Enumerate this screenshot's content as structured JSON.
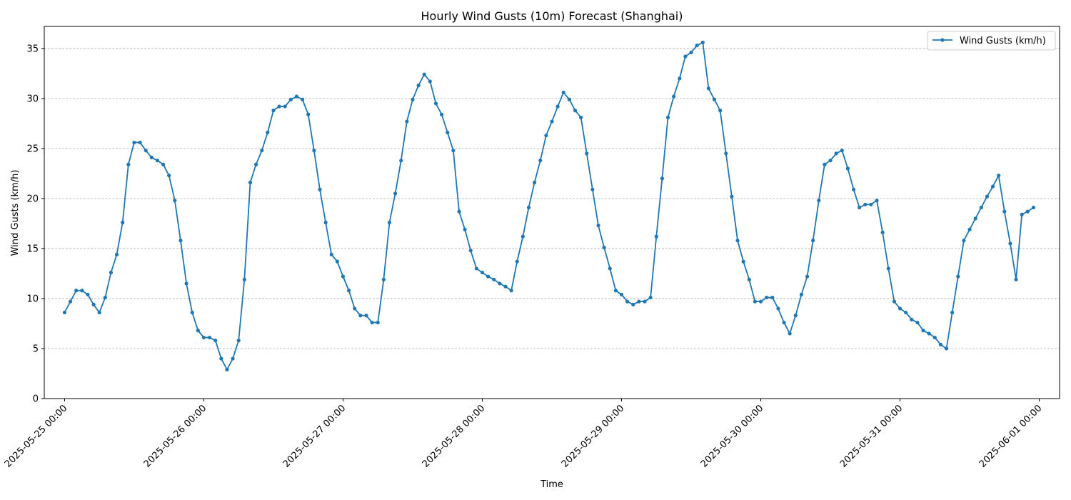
{
  "chart_data": {
    "type": "line",
    "title": "Hourly Wind Gusts (10m) Forecast (Shanghai)",
    "xlabel": "Time",
    "ylabel": "Wind Gusts (km/h)",
    "ylim": [
      0,
      37.2
    ],
    "yticks": [
      0,
      5,
      10,
      15,
      20,
      25,
      30,
      35
    ],
    "grid": "y-dashed",
    "legend_position": "top-right",
    "x_start": "2025-05-25 00:00",
    "x_step_hours": 1,
    "x_ticks": [
      {
        "hour": 0,
        "label": "2025-05-25 00:00"
      },
      {
        "hour": 24,
        "label": "2025-05-26 00:00"
      },
      {
        "hour": 48,
        "label": "2025-05-27 00:00"
      },
      {
        "hour": 72,
        "label": "2025-05-28 00:00"
      },
      {
        "hour": 96,
        "label": "2025-05-29 00:00"
      },
      {
        "hour": 120,
        "label": "2025-05-30 00:00"
      },
      {
        "hour": 144,
        "label": "2025-05-31 00:00"
      },
      {
        "hour": 168,
        "label": "2025-06-01 00:00"
      }
    ],
    "series": [
      {
        "name": "Wind Gusts (km/h)",
        "color": "#1f77b4",
        "marker": "circle",
        "values": [
          8.6,
          9.7,
          10.8,
          10.8,
          10.4,
          9.4,
          8.6,
          10.1,
          12.6,
          14.4,
          17.6,
          23.4,
          25.6,
          25.6,
          24.8,
          24.1,
          23.8,
          23.4,
          22.3,
          19.8,
          15.8,
          11.5,
          8.6,
          6.8,
          6.1,
          6.1,
          5.8,
          4.0,
          2.9,
          4.0,
          5.8,
          11.9,
          21.6,
          23.4,
          24.8,
          26.6,
          28.8,
          29.2,
          29.2,
          29.9,
          30.2,
          29.9,
          28.4,
          24.8,
          20.9,
          17.6,
          14.4,
          13.7,
          12.2,
          10.8,
          9.0,
          8.3,
          8.3,
          7.6,
          7.6,
          11.9,
          17.6,
          20.5,
          23.8,
          27.7,
          29.9,
          31.3,
          32.4,
          31.7,
          29.5,
          28.4,
          26.6,
          24.8,
          18.7,
          16.9,
          14.8,
          13.0,
          12.6,
          12.2,
          11.9,
          11.5,
          11.2,
          10.8,
          13.7,
          16.2,
          19.1,
          21.6,
          23.8,
          26.3,
          27.7,
          29.2,
          30.6,
          29.9,
          28.8,
          28.1,
          24.5,
          20.9,
          17.3,
          15.1,
          13.0,
          10.8,
          10.4,
          9.7,
          9.4,
          9.7,
          9.7,
          10.1,
          16.2,
          22.0,
          28.1,
          30.2,
          32.0,
          34.2,
          34.6,
          35.3,
          35.6,
          31.0,
          29.9,
          28.8,
          24.5,
          20.2,
          15.8,
          13.7,
          11.9,
          9.7,
          9.7,
          10.1,
          10.1,
          9.0,
          7.6,
          6.5,
          8.3,
          10.4,
          12.2,
          15.8,
          19.8,
          23.4,
          23.8,
          24.5,
          24.8,
          23.0,
          20.9,
          19.1,
          19.4,
          19.4,
          19.8,
          16.6,
          13.0,
          9.7,
          9.0,
          8.6,
          7.9,
          7.6,
          6.8,
          6.5,
          6.1,
          5.4,
          5.0,
          8.6,
          12.2,
          15.8,
          16.9,
          18.0,
          19.1,
          20.2,
          21.2,
          22.3,
          18.7,
          15.5,
          11.9,
          18.4,
          18.7,
          19.1
        ]
      }
    ]
  }
}
